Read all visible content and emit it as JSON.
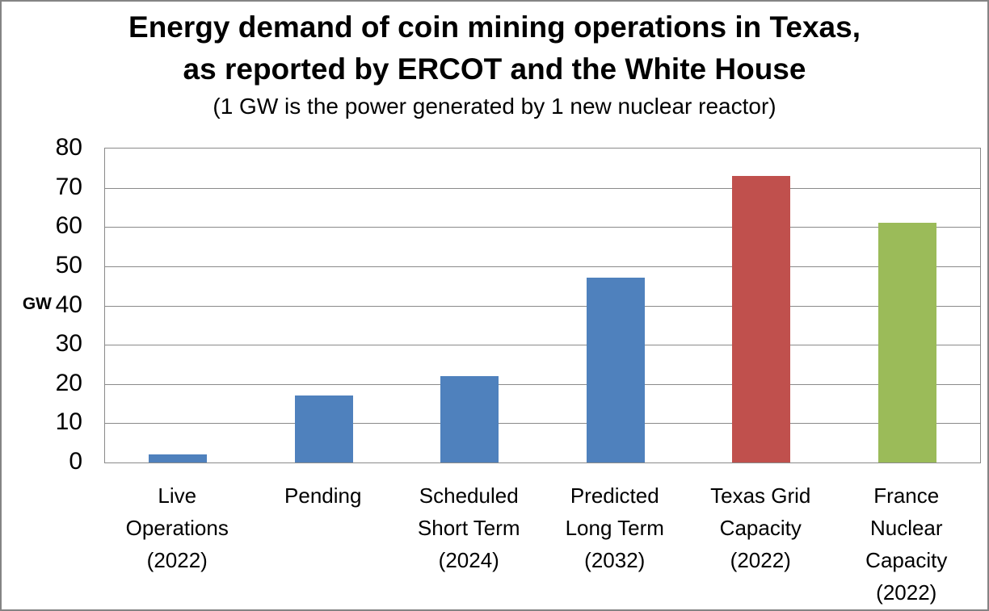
{
  "chart_data": {
    "type": "bar",
    "title_line1": "Energy demand of coin mining operations in Texas,",
    "title_line2": "as reported by ERCOT and the White House",
    "subtitle": "(1 GW is the power generated by 1 new nuclear reactor)",
    "xlabel": "",
    "ylabel": "GW",
    "ylim": [
      0,
      80
    ],
    "yticks": [
      0,
      10,
      20,
      30,
      40,
      50,
      60,
      70,
      80
    ],
    "grid": true,
    "legend": false,
    "categories": [
      "Live\nOperations\n(2022)",
      "Pending",
      "Scheduled\nShort Term\n(2024)",
      "Predicted\nLong Term\n(2032)",
      "Texas Grid\nCapacity\n(2022)",
      "France\nNuclear\nCapacity\n(2022)"
    ],
    "values": [
      2,
      17,
      22,
      47,
      73,
      61
    ],
    "bar_colors": [
      "#4F81BD",
      "#4F81BD",
      "#4F81BD",
      "#4F81BD",
      "#C0504D",
      "#9BBB59"
    ],
    "colors": {
      "demand_blue": "#4F81BD",
      "texas_grid_red": "#C0504D",
      "france_nuclear_green": "#9BBB59",
      "gridline_gray": "#8a8a8a",
      "frame_gray": "#848484"
    }
  }
}
